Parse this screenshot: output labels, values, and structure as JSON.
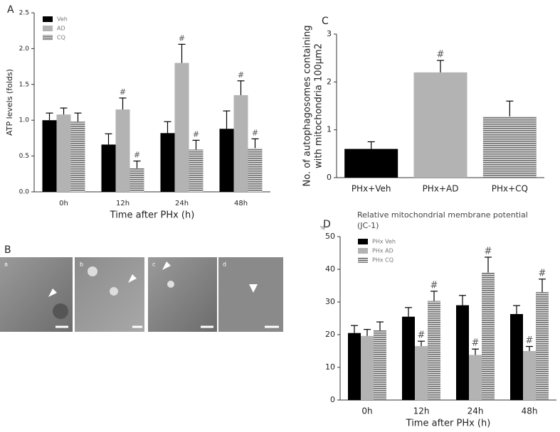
{
  "chart_data": [
    {
      "type": "bar",
      "panel_label": "A",
      "ylabel": "ATP levels (folds)",
      "xlabel": "Time after PHx (h)",
      "categories": [
        "0h",
        "12h",
        "24h",
        "48h"
      ],
      "series": [
        {
          "name": "Veh",
          "color": "#000000",
          "fill_style": "solid",
          "values": [
            1.0,
            0.66,
            0.82,
            0.88
          ],
          "errors": [
            0.1,
            0.15,
            0.16,
            0.25
          ],
          "annotations": [
            null,
            null,
            null,
            null
          ]
        },
        {
          "name": "AD",
          "color": "#b3b3b3",
          "fill_style": "solid",
          "values": [
            1.08,
            1.15,
            1.8,
            1.35
          ],
          "errors": [
            0.09,
            0.16,
            0.26,
            0.2
          ],
          "annotations": [
            null,
            "#",
            "#",
            "#"
          ]
        },
        {
          "name": "CQ",
          "color": "#6e6e6e",
          "fill_style": "striped",
          "values": [
            0.98,
            0.33,
            0.59,
            0.61
          ],
          "errors": [
            0.12,
            0.1,
            0.13,
            0.13
          ],
          "annotations": [
            null,
            "#",
            "#",
            "#"
          ]
        }
      ],
      "ylim": [
        0,
        2.5
      ],
      "yticks": [
        {
          "value": 0,
          "label": "0.0"
        },
        {
          "value": 0.5,
          "label": "0.5"
        },
        {
          "value": 1,
          "label": "1.0"
        },
        {
          "value": 1.5,
          "label": "1.5"
        },
        {
          "value": 2,
          "label": "2.0"
        },
        {
          "value": 2.5,
          "label": "2.5"
        }
      ],
      "legend": "upper left"
    },
    {
      "type": "bar",
      "panel_label": "C",
      "ylabel": [
        "No. of autophagosomes containing",
        "with mitochondria 100μm2"
      ],
      "categories": [
        "PHx+Veh",
        "PHx+AD",
        "PHx+CQ"
      ],
      "values": [
        0.6,
        2.2,
        1.28
      ],
      "errors": [
        0.15,
        0.25,
        0.32
      ],
      "annotations": [
        null,
        "#",
        null
      ],
      "colors": [
        "#000000",
        "#b3b3b3",
        "#6e6e6e"
      ],
      "fill_styles": [
        "solid",
        "solid",
        "striped"
      ],
      "ylim": [
        0,
        3
      ],
      "yticks": [
        0,
        1,
        2,
        3
      ]
    },
    {
      "type": "bar",
      "panel_label": "D",
      "title": [
        "Relative mitochondrial membrane potential",
        "(JC-1)"
      ],
      "unit": "%",
      "xlabel": "Time after PHx (h)",
      "categories": [
        "0h",
        "12h",
        "24h",
        "48h"
      ],
      "series": [
        {
          "name": "PHx Veh",
          "color": "#000000",
          "fill_style": "solid",
          "values": [
            20.5,
            25.5,
            29,
            26.3
          ],
          "errors": [
            2.3,
            2.8,
            3,
            2.6
          ],
          "annotations": [
            null,
            null,
            null,
            null
          ]
        },
        {
          "name": "PHx AD",
          "color": "#b3b3b3",
          "fill_style": "solid",
          "values": [
            19.6,
            16.5,
            13.8,
            15
          ],
          "errors": [
            2,
            1.5,
            1.8,
            1.4
          ],
          "annotations": [
            null,
            "#",
            "#",
            "#"
          ]
        },
        {
          "name": "PHx CQ",
          "color": "#6e6e6e",
          "fill_style": "striped",
          "values": [
            21.3,
            30.3,
            39,
            33
          ],
          "errors": [
            2.6,
            3,
            4.7,
            4
          ],
          "annotations": [
            null,
            "#",
            "#",
            "#"
          ]
        }
      ],
      "ylim": [
        0,
        50
      ],
      "yticks": [
        0,
        10,
        20,
        30,
        40,
        50
      ],
      "legend": "upper left"
    }
  ],
  "micrographs": {
    "panel_label": "B",
    "panels": [
      "a",
      "b",
      "c",
      "d"
    ]
  }
}
